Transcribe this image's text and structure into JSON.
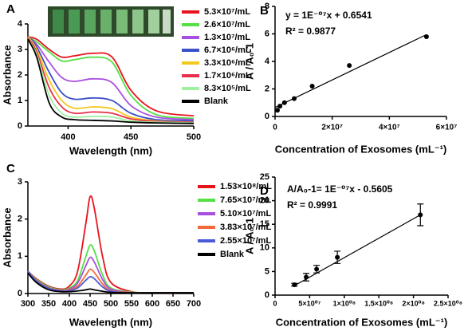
{
  "chart_data": [
    {
      "type": "line",
      "label": "A",
      "xlabel": "Wavelength (nm)",
      "ylabel": "Absorbance",
      "xlim": [
        368,
        500
      ],
      "xticks": [
        400,
        450,
        500
      ],
      "ylim": [
        0,
        4
      ],
      "yticks": [
        0,
        1,
        2,
        3,
        4
      ],
      "x": [
        368,
        375,
        385,
        395,
        405,
        420,
        435,
        450,
        470,
        500
      ],
      "series": [
        {
          "name": "5.3×10⁷/mL",
          "color": "#e8141c",
          "values": [
            3.5,
            3.4,
            3.0,
            2.7,
            2.75,
            2.85,
            2.7,
            1.4,
            0.6,
            0.4
          ]
        },
        {
          "name": "2.6×10⁷/mL",
          "color": "#55e045",
          "values": [
            3.5,
            3.3,
            2.9,
            2.55,
            2.6,
            2.7,
            2.5,
            1.2,
            0.45,
            0.3
          ]
        },
        {
          "name": "1.3×10⁷/mL",
          "color": "#a94fe0",
          "values": [
            3.5,
            3.2,
            2.5,
            1.9,
            1.75,
            1.85,
            1.7,
            0.8,
            0.35,
            0.25
          ]
        },
        {
          "name": "6.7×10⁶/mL",
          "color": "#3a4fc8",
          "values": [
            3.5,
            3.1,
            2.1,
            1.3,
            1.05,
            1.1,
            1.0,
            0.5,
            0.25,
            0.2
          ]
        },
        {
          "name": "3.3×10⁶/mL",
          "color": "#f2c81e",
          "values": [
            3.5,
            3.0,
            1.8,
            1.0,
            0.7,
            0.75,
            0.68,
            0.35,
            0.2,
            0.15
          ]
        },
        {
          "name": "1.7×10⁶/mL",
          "color": "#e8304a",
          "values": [
            3.45,
            2.9,
            1.5,
            0.75,
            0.5,
            0.55,
            0.5,
            0.28,
            0.18,
            0.14
          ]
        },
        {
          "name": "8.3×10⁵/mL",
          "color": "#9ff0a0",
          "values": [
            3.4,
            2.8,
            1.2,
            0.5,
            0.35,
            0.38,
            0.35,
            0.2,
            0.15,
            0.12
          ]
        },
        {
          "name": "Blank",
          "color": "#000000",
          "values": [
            3.4,
            2.7,
            0.9,
            0.35,
            0.25,
            0.22,
            0.2,
            0.15,
            0.12,
            0.1
          ]
        }
      ]
    },
    {
      "type": "scatter",
      "label": "B",
      "xlabel": "Concentration of Exosomes (mL⁻¹)",
      "ylabel": "A / A₀-1",
      "xlim": [
        0,
        60000000
      ],
      "xticks": [
        0,
        {
          "value": 20000000,
          "label": "2×10⁷"
        },
        {
          "value": 40000000,
          "label": "4×10⁷"
        },
        {
          "value": 60000000,
          "label": "6×10⁷"
        }
      ],
      "ylim": [
        0,
        8
      ],
      "yticks": [
        0,
        2,
        4,
        6,
        8
      ],
      "x": [
        830000,
        1700000,
        3300000,
        6700000,
        13000000,
        26000000,
        53000000
      ],
      "values": [
        0.45,
        0.75,
        1.0,
        1.3,
        2.2,
        3.7,
        5.8
      ],
      "fit": {
        "x": [
          0,
          53000000
        ],
        "values": [
          0.65,
          5.95
        ]
      },
      "annotations": [
        "y = 1E⁻⁰⁷x + 0.6541",
        "R² = 0.9877"
      ]
    },
    {
      "type": "line",
      "label": "C",
      "xlabel": "Wavelength (nm)",
      "ylabel": "Absorbance",
      "xlim": [
        300,
        700
      ],
      "xticks": [
        300,
        350,
        400,
        450,
        500,
        550,
        600,
        650,
        700
      ],
      "ylim": [
        0,
        3
      ],
      "yticks": [
        0,
        1,
        2,
        3
      ],
      "x": [
        300,
        320,
        350,
        380,
        400,
        420,
        440,
        450,
        460,
        480,
        500,
        550,
        600,
        700
      ],
      "series": [
        {
          "name": "1.53×10⁸/mL",
          "color": "#e8141c",
          "values": [
            0.6,
            0.4,
            0.2,
            0.12,
            0.2,
            0.6,
            1.9,
            2.6,
            2.3,
            1.0,
            0.3,
            0.05,
            0.02,
            0.02
          ]
        },
        {
          "name": "7.65×10⁷/mL",
          "color": "#55e045",
          "values": [
            0.6,
            0.38,
            0.18,
            0.1,
            0.15,
            0.35,
            1.0,
            1.3,
            1.15,
            0.5,
            0.15,
            0.04,
            0.02,
            0.02
          ]
        },
        {
          "name": "5.10×10⁷/mL",
          "color": "#a94fe0",
          "values": [
            0.6,
            0.36,
            0.16,
            0.09,
            0.12,
            0.28,
            0.75,
            0.97,
            0.85,
            0.38,
            0.12,
            0.03,
            0.02,
            0.02
          ]
        },
        {
          "name": "3.83×10⁷/mL",
          "color": "#f36b3b",
          "values": [
            0.6,
            0.35,
            0.15,
            0.08,
            0.1,
            0.2,
            0.5,
            0.65,
            0.57,
            0.26,
            0.08,
            0.03,
            0.02,
            0.02
          ]
        },
        {
          "name": "2.55×10⁷/mL",
          "color": "#4a5ad8",
          "values": [
            0.6,
            0.34,
            0.14,
            0.07,
            0.08,
            0.15,
            0.36,
            0.45,
            0.4,
            0.18,
            0.06,
            0.02,
            0.02,
            0.02
          ]
        },
        {
          "name": "Blank",
          "color": "#000000",
          "values": [
            0.55,
            0.3,
            0.1,
            0.05,
            0.05,
            0.07,
            0.1,
            0.12,
            0.1,
            0.06,
            0.03,
            0.02,
            0.02,
            0.02
          ]
        }
      ]
    },
    {
      "type": "scatter",
      "label": "D",
      "xlabel": "Concentration of Exosomes (mL⁻¹)",
      "ylabel": "A / A₀-1",
      "xlim": [
        0,
        250000000
      ],
      "xticks": [
        0,
        {
          "value": 50000000,
          "label": "5×10⁰⁷"
        },
        {
          "value": 100000000,
          "label": "1×10⁰⁸"
        },
        {
          "value": 150000000,
          "label": "1.5×10⁰⁸"
        },
        {
          "value": 200000000,
          "label": "2×10⁰⁸"
        },
        {
          "value": 250000000,
          "label": "2.5×10⁰⁸"
        }
      ],
      "ylim": [
        0,
        25
      ],
      "yticks": [
        0,
        5,
        10,
        15,
        20,
        25
      ],
      "x": [
        28000000,
        45000000,
        60000000,
        90000000,
        210000000
      ],
      "values": [
        2.2,
        3.8,
        5.5,
        8.0,
        17.0
      ],
      "errors": [
        0.3,
        0.8,
        0.8,
        1.3,
        2.3
      ],
      "fit": {
        "x": [
          28000000,
          210000000
        ],
        "values": [
          2.0,
          17.0
        ]
      },
      "annotations": [
        "A/A₀-1= 1E⁻⁰⁷x - 0.5605",
        "R² = 0.9991"
      ]
    }
  ]
}
